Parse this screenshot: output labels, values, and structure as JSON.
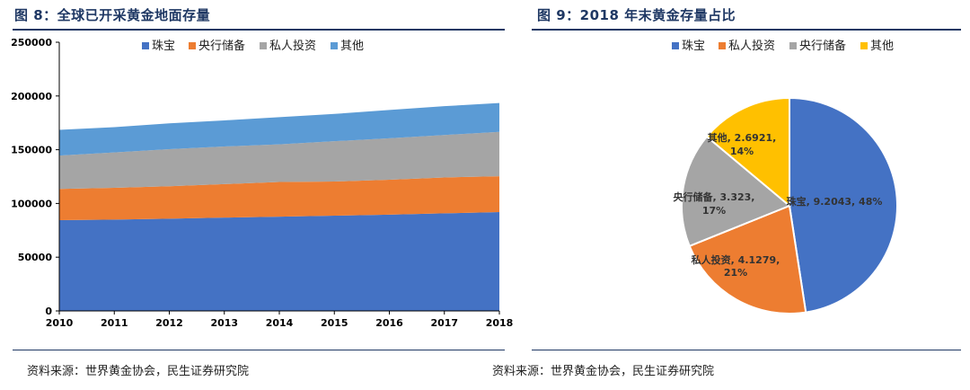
{
  "left": {
    "title": "图 8：全球已开采黄金地面存量",
    "source": "资料来源：世界黄金协会，民生证券研究院"
  },
  "right": {
    "title": "图 9：2018 年末黄金存量占比",
    "source": "资料来源：世界黄金协会，民生证券研究院"
  },
  "colors": {
    "jewelry": "#4472c4",
    "central_bank": "#ed7d31",
    "private_investment": "#a5a5a5",
    "other": "#5b9bd5",
    "other_pie": "#ffc000",
    "title_blue": "#1f3864"
  },
  "chart_data": [
    {
      "type": "area",
      "stacked": true,
      "x": [
        "2010",
        "2011",
        "2012",
        "2013",
        "2014",
        "2015",
        "2016",
        "2017",
        "2018"
      ],
      "yticks": [
        "0",
        "50000",
        "100000",
        "150000",
        "200000",
        "250000"
      ],
      "ylim": [
        0,
        250000
      ],
      "legend_position": "top",
      "series": [
        {
          "name": "珠宝",
          "values": [
            84500,
            85000,
            85800,
            86800,
            87700,
            88600,
            89600,
            90800,
            92000
          ]
        },
        {
          "name": "央行储备",
          "values": [
            29000,
            29500,
            30200,
            31200,
            32300,
            31800,
            32500,
            33400,
            33300
          ]
        },
        {
          "name": "私人投资",
          "values": [
            31000,
            33000,
            34500,
            35000,
            35000,
            37500,
            38500,
            39500,
            41300
          ]
        },
        {
          "name": "其他",
          "values": [
            24000,
            23500,
            24000,
            24300,
            25300,
            25400,
            26400,
            26800,
            26900
          ]
        }
      ]
    },
    {
      "type": "pie",
      "legend_position": "top",
      "legend": [
        "珠宝",
        "私人投资",
        "央行储备",
        "其他"
      ],
      "slices": [
        {
          "name": "珠宝",
          "value": 9.2043,
          "label": "珠宝, 9.2043, 48%"
        },
        {
          "name": "私人投资",
          "value": 4.1279,
          "label1": "私人投资, 4.1279,",
          "label2": "21%"
        },
        {
          "name": "央行储备",
          "value": 3.323,
          "label1": "央行储备, 3.323,",
          "label2": "17%"
        },
        {
          "name": "其他",
          "value": 2.6921,
          "label1": "其他, 2.6921,",
          "label2": "14%"
        }
      ]
    }
  ]
}
